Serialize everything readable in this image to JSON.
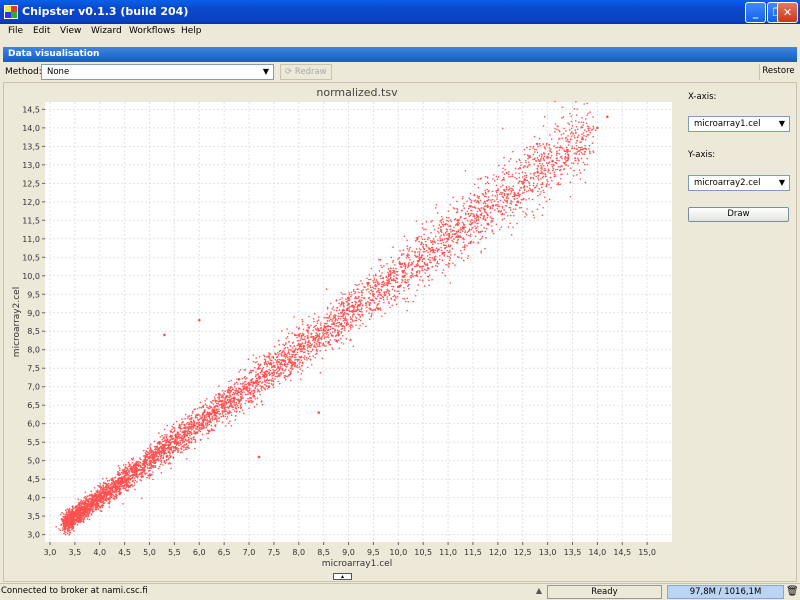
{
  "window": {
    "title": "Chipster v0.1.3 (build 204)"
  },
  "menu": [
    "File",
    "Edit",
    "View",
    "Wizard",
    "Workflows",
    "Help"
  ],
  "panel": {
    "title": "Data visualisation",
    "method_label": "Method:",
    "method_value": "None",
    "redraw_label": "Redraw",
    "restore_label": "Restore"
  },
  "settings": {
    "x_axis_label": "X-axis:",
    "x_axis_value": "microarray1.cel",
    "y_axis_label": "Y-axis:",
    "y_axis_value": "microarray2.cel",
    "draw_label": "Draw"
  },
  "status": {
    "message": "Connected to broker at nami.csc.fi",
    "state": "Ready",
    "memory": "97,8M / 1016,1M"
  },
  "colors": {
    "points": "#ff5050",
    "accent": "#1b5cc4"
  },
  "chart_data": {
    "type": "scatter",
    "title": "normalized.tsv",
    "xlabel": "microarray1.cel",
    "ylabel": "microarray2.cel",
    "xlim": [
      2.9,
      15.5
    ],
    "ylim": [
      2.8,
      14.7
    ],
    "grid": true,
    "x_ticks": [
      "3,0",
      "3,5",
      "4,0",
      "4,5",
      "5,0",
      "5,5",
      "6,0",
      "6,5",
      "7,0",
      "7,5",
      "8,0",
      "8,5",
      "9,0",
      "9,5",
      "10,0",
      "10,5",
      "11,0",
      "11,5",
      "12,0",
      "12,5",
      "13,0",
      "13,5",
      "14,0",
      "14,5",
      "15,0"
    ],
    "y_ticks": [
      "3,0",
      "3,5",
      "4,0",
      "4,5",
      "5,0",
      "5,5",
      "6,0",
      "6,5",
      "7,0",
      "7,5",
      "8,0",
      "8,5",
      "9,0",
      "9,5",
      "10,0",
      "10,5",
      "11,0",
      "11,5",
      "12,0",
      "12,5",
      "13,0",
      "13,5",
      "14,0",
      "14,5"
    ],
    "series": [
      {
        "values_x": [
          3.3,
          3.5,
          3.7,
          3.9,
          4.1,
          4.3,
          4.5,
          4.7,
          4.9,
          5.1,
          5.3,
          5.5,
          5.7,
          5.9,
          6.1,
          6.3,
          6.5,
          6.7,
          6.9,
          7.1,
          7.3,
          7.5,
          7.7,
          7.9,
          8.1,
          8.3,
          8.5,
          8.7,
          8.9,
          9.2,
          9.5,
          9.8,
          10.1,
          10.4,
          10.7,
          11.0,
          11.3,
          11.6,
          11.9,
          12.2,
          12.5,
          12.8,
          13.1,
          13.4,
          13.7,
          14.0,
          14.2,
          4.0,
          4.6,
          5.2,
          5.8,
          6.4,
          7.0,
          7.6,
          8.2,
          8.8,
          9.4,
          10.0,
          10.6,
          11.2,
          11.8,
          12.4,
          13.0,
          3.6,
          4.4,
          5.0,
          5.6,
          6.2,
          6.8,
          7.4,
          8.0,
          8.6,
          9.0,
          6.0,
          5.3,
          7.2,
          8.4,
          9.6
        ],
        "values_y": [
          3.35,
          3.5,
          3.7,
          3.95,
          4.15,
          4.3,
          4.55,
          4.7,
          4.95,
          5.1,
          5.35,
          5.5,
          5.7,
          5.95,
          6.1,
          6.35,
          6.5,
          6.7,
          6.95,
          7.1,
          7.3,
          7.55,
          7.7,
          7.95,
          8.1,
          8.3,
          8.55,
          8.7,
          8.95,
          9.2,
          9.5,
          9.8,
          10.1,
          10.4,
          10.7,
          11.0,
          11.3,
          11.6,
          11.9,
          12.2,
          12.5,
          12.8,
          13.1,
          13.4,
          13.7,
          14.0,
          14.3,
          4.3,
          4.3,
          5.5,
          5.5,
          6.8,
          6.6,
          7.3,
          8.6,
          8.4,
          9.8,
          9.7,
          10.2,
          11.5,
          11.4,
          12.0,
          13.2,
          3.4,
          4.1,
          4.6,
          5.9,
          5.8,
          7.2,
          7.0,
          8.4,
          8.2,
          9.4,
          8.8,
          8.4,
          5.1,
          6.3,
          9.1
        ]
      }
    ]
  }
}
